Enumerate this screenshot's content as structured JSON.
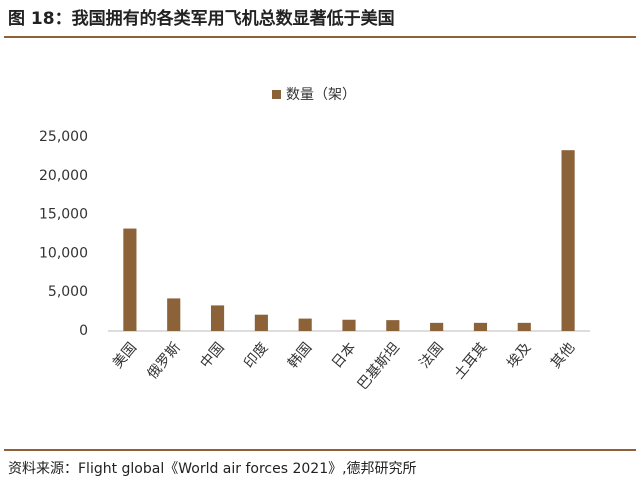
{
  "chart_data": {
    "type": "bar",
    "title": "图 18：我国拥有的各类军用飞机总数显著低于美国",
    "source": "资料来源：Flight global《World air forces 2021》,德邦研究所",
    "categories": [
      "美国",
      "俄罗斯",
      "中国",
      "印度",
      "韩国",
      "日本",
      "巴基斯坦",
      "法国",
      "土耳其",
      "埃及",
      "其他"
    ],
    "series": [
      {
        "name": "数量（架）",
        "color": "#8c6239",
        "values": [
          13200,
          4200,
          3300,
          2100,
          1600,
          1450,
          1400,
          1050,
          1050,
          1050,
          23300
        ]
      }
    ],
    "ylim": [
      0,
      25000
    ],
    "yticks": [
      0,
      {
        "value": 5000,
        "label": "5,000"
      },
      {
        "value": 10000,
        "label": "10,000"
      },
      {
        "value": 15000,
        "label": "15,000"
      },
      {
        "value": 20000,
        "label": "20,000"
      },
      {
        "value": 25000,
        "label": "25,000"
      }
    ],
    "grid": false
  }
}
